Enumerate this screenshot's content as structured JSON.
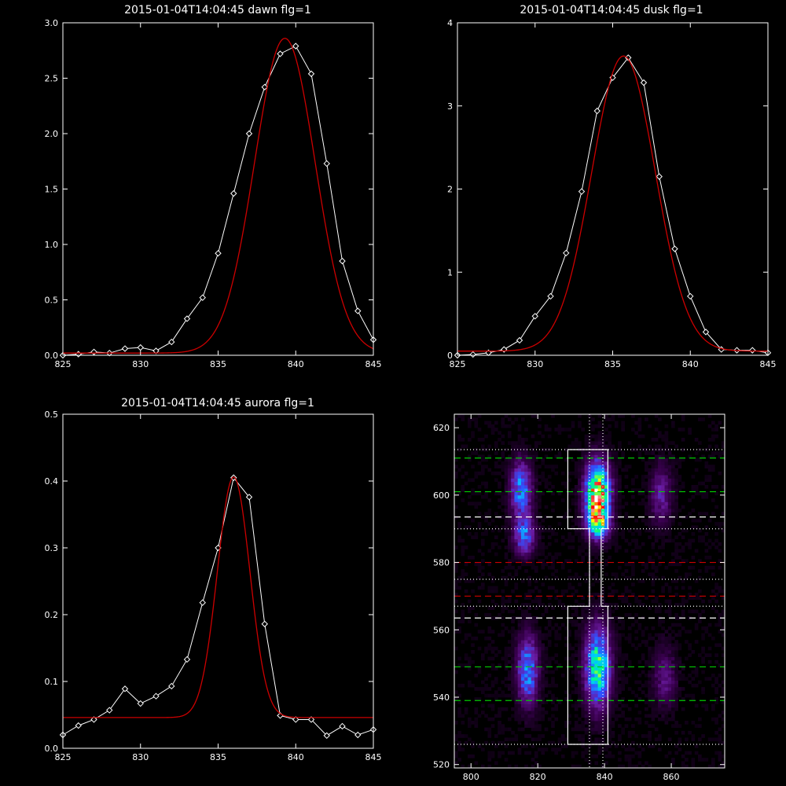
{
  "chart_data": [
    {
      "type": "line",
      "title": "2015-01-04T14:04:45 dawn flg=1",
      "xlim": [
        825,
        845
      ],
      "ylim": [
        0,
        3.0
      ],
      "xticks": [
        825,
        830,
        835,
        840,
        845
      ],
      "xtick_labels": [
        "825",
        "830",
        "835",
        "840",
        "845"
      ],
      "yticks": [
        0,
        0.5,
        1.0,
        1.5,
        2.0,
        2.5,
        3.0
      ],
      "ytick_labels": [
        "0.0",
        "0.5",
        "1.0",
        "1.5",
        "2.0",
        "2.5",
        "3.0"
      ],
      "series": [
        {
          "style": "data",
          "color": "#ffffff",
          "marker": "diamond",
          "x": [
            825,
            826,
            827,
            828,
            829,
            830,
            831,
            832,
            833,
            834,
            835,
            836,
            837,
            838,
            839,
            840,
            841,
            842,
            843,
            844,
            845
          ],
          "y": [
            0.0,
            0.01,
            0.03,
            0.02,
            0.06,
            0.07,
            0.04,
            0.12,
            0.33,
            0.52,
            0.92,
            1.46,
            2.0,
            2.42,
            2.72,
            2.79,
            2.54,
            1.73,
            0.85,
            0.4,
            0.14
          ]
        },
        {
          "style": "fit",
          "color": "#cc0000",
          "gaussian": {
            "amp": 2.84,
            "center": 839.3,
            "sigma": 1.95,
            "base": 0.02
          }
        }
      ]
    },
    {
      "type": "line",
      "title": "2015-01-04T14:04:45 dusk flg=1",
      "xlim": [
        825,
        845
      ],
      "ylim": [
        0,
        4.0
      ],
      "xticks": [
        825,
        830,
        835,
        840,
        845
      ],
      "xtick_labels": [
        "825",
        "830",
        "835",
        "840",
        "845"
      ],
      "yticks": [
        0,
        1,
        2,
        3,
        4
      ],
      "ytick_labels": [
        "0",
        "1",
        "2",
        "3",
        "4"
      ],
      "series": [
        {
          "style": "data",
          "color": "#ffffff",
          "marker": "diamond",
          "x": [
            825,
            826,
            827,
            828,
            829,
            830,
            831,
            832,
            833,
            834,
            835,
            836,
            837,
            838,
            839,
            840,
            841,
            842,
            843,
            844,
            845
          ],
          "y": [
            0.0,
            0.01,
            0.03,
            0.07,
            0.18,
            0.47,
            0.71,
            1.23,
            1.97,
            2.94,
            3.34,
            3.58,
            3.28,
            2.15,
            1.28,
            0.71,
            0.28,
            0.07,
            0.06,
            0.06,
            0.03
          ]
        },
        {
          "style": "fit",
          "color": "#cc0000",
          "gaussian": {
            "amp": 3.55,
            "center": 835.7,
            "sigma": 2.05,
            "base": 0.05
          }
        }
      ]
    },
    {
      "type": "line",
      "title": "2015-01-04T14:04:45 aurora flg=1",
      "xlim": [
        825,
        845
      ],
      "ylim": [
        0,
        0.5
      ],
      "xticks": [
        825,
        830,
        835,
        840,
        845
      ],
      "xtick_labels": [
        "825",
        "830",
        "835",
        "840",
        "845"
      ],
      "yticks": [
        0,
        0.1,
        0.2,
        0.3,
        0.4,
        0.5
      ],
      "ytick_labels": [
        "0.0",
        "0.1",
        "0.2",
        "0.3",
        "0.4",
        "0.5"
      ],
      "series": [
        {
          "style": "data",
          "color": "#ffffff",
          "marker": "diamond",
          "x": [
            825,
            826,
            827,
            828,
            829,
            830,
            831,
            832,
            833,
            834,
            835,
            836,
            837,
            838,
            839,
            840,
            841,
            842,
            843,
            844,
            845
          ],
          "y": [
            0.02,
            0.034,
            0.043,
            0.057,
            0.089,
            0.067,
            0.078,
            0.093,
            0.133,
            0.218,
            0.3,
            0.405,
            0.376,
            0.186,
            0.049,
            0.043,
            0.043,
            0.019,
            0.033,
            0.02,
            0.028
          ]
        },
        {
          "style": "fit",
          "color": "#cc0000",
          "gaussian": {
            "amp": 0.36,
            "center": 836.0,
            "sigma": 1.05,
            "base": 0.046
          }
        }
      ]
    },
    {
      "type": "heatmap",
      "xlim": [
        795,
        876
      ],
      "ylim": [
        519,
        624
      ],
      "xticks": [
        800,
        820,
        840,
        860
      ],
      "xtick_labels": [
        "800",
        "820",
        "840",
        "860"
      ],
      "yticks": [
        520,
        540,
        560,
        580,
        600,
        620
      ],
      "ytick_labels": [
        "520",
        "540",
        "560",
        "580",
        "600",
        "620"
      ],
      "colormap": [
        "#000000",
        "#3a0050",
        "#6a1aa0",
        "#3050ff",
        "#00c8ff",
        "#00ff80",
        "#ffff00",
        "#ff0000",
        "#ffffff"
      ],
      "hotspots": [
        {
          "x": 815,
          "y": 602,
          "sx": 2.2,
          "sy": 5.5,
          "amp": 0.42
        },
        {
          "x": 816,
          "y": 588,
          "sx": 2.2,
          "sy": 4.0,
          "amp": 0.38
        },
        {
          "x": 817,
          "y": 548,
          "sx": 2.2,
          "sy": 7.0,
          "amp": 0.42
        },
        {
          "x": 838,
          "y": 601,
          "sx": 2.5,
          "sy": 6.0,
          "amp": 0.85
        },
        {
          "x": 838,
          "y": 592,
          "sx": 2.3,
          "sy": 3.5,
          "amp": 0.55
        },
        {
          "x": 838,
          "y": 549,
          "sx": 2.6,
          "sy": 8.0,
          "amp": 0.6
        },
        {
          "x": 857,
          "y": 600,
          "sx": 2.2,
          "sy": 6.0,
          "amp": 0.22
        },
        {
          "x": 858,
          "y": 546,
          "sx": 2.4,
          "sy": 6.0,
          "amp": 0.18
        }
      ],
      "hlines": [
        {
          "y": 611,
          "color": "#00cc00",
          "dash": "dashed"
        },
        {
          "y": 601,
          "color": "#00cc00",
          "dash": "dashed"
        },
        {
          "y": 593.5,
          "color": "#ffffff",
          "dash": "dashed"
        },
        {
          "y": 580,
          "color": "#cc0000",
          "dash": "dashed"
        },
        {
          "y": 570,
          "color": "#cc0000",
          "dash": "dashed"
        },
        {
          "y": 563.5,
          "color": "#ffffff",
          "dash": "dashed"
        },
        {
          "y": 549,
          "color": "#00cc00",
          "dash": "dashed"
        },
        {
          "y": 539,
          "color": "#00cc00",
          "dash": "dashed"
        },
        {
          "y": 613.5,
          "color": "#ffffff",
          "dash": "dotted"
        },
        {
          "y": 590,
          "color": "#ffffff",
          "dash": "dotted"
        },
        {
          "y": 575,
          "color": "#ffffff",
          "dash": "dotted"
        },
        {
          "y": 567,
          "color": "#ffffff",
          "dash": "dotted"
        },
        {
          "y": 526,
          "color": "#ffffff",
          "dash": "dotted"
        }
      ],
      "vlines": [
        {
          "x": 835.5,
          "color": "#ffffff",
          "dash": "dotted"
        },
        {
          "x": 839.5,
          "color": "#ffffff",
          "dash": "dotted"
        }
      ],
      "outline": [
        [
          829,
          613.5
        ],
        [
          841,
          613.5
        ],
        [
          841,
          590
        ],
        [
          839,
          590
        ],
        [
          839,
          567
        ],
        [
          841,
          567
        ],
        [
          841,
          526
        ],
        [
          829,
          526
        ],
        [
          829,
          567
        ],
        [
          835.5,
          567
        ],
        [
          835.5,
          590
        ],
        [
          829,
          590
        ],
        [
          829,
          613.5
        ]
      ]
    }
  ]
}
